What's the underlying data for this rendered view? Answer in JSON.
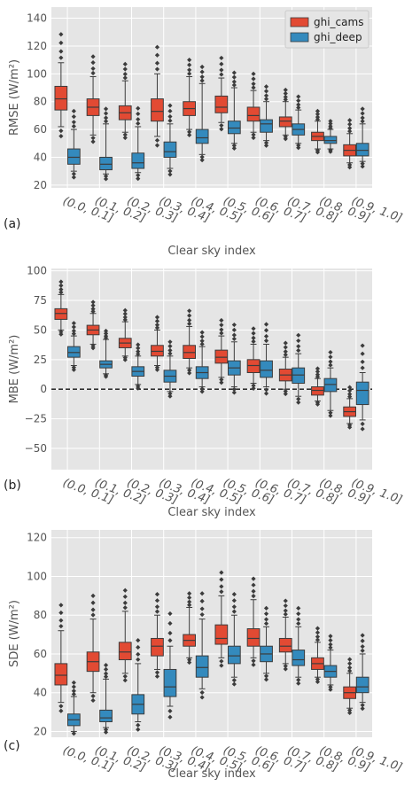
{
  "colors": {
    "ghi_cams": "#e24a33",
    "ghi_deep": "#348abd"
  },
  "legend": {
    "items": [
      "ghi_cams",
      "ghi_deep"
    ],
    "placement": "top-right"
  },
  "categories": [
    "(0.0, 0.1]",
    "(0.1, 0.2]",
    "(0.2, 0.3]",
    "(0.3, 0.4]",
    "(0.4, 0.5]",
    "(0.5, 0.6]",
    "(0.6, 0.7]",
    "(0.7, 0.8]",
    "(0.8, 0.9]",
    "(0.9, 1.0]"
  ],
  "chart_data": [
    {
      "type": "box",
      "panel_label": "(a)",
      "xlabel": "Clear sky index",
      "ylabel": "RMSE (W/m²)",
      "ylim": [
        18,
        148
      ],
      "yticks": [
        20,
        40,
        60,
        80,
        100,
        120,
        140
      ],
      "grid": true,
      "series": [
        {
          "name": "ghi_cams",
          "boxes": [
            {
              "whislo": 62,
              "q1": 74,
              "med": 82,
              "q3": 91,
              "whishi": 108
            },
            {
              "whislo": 56,
              "q1": 70,
              "med": 76,
              "q3": 82,
              "whishi": 98
            },
            {
              "whislo": 58,
              "q1": 67,
              "med": 72,
              "q3": 77,
              "whishi": 95
            },
            {
              "whislo": 55,
              "q1": 66,
              "med": 73,
              "q3": 82,
              "whishi": 100
            },
            {
              "whislo": 60,
              "q1": 70,
              "med": 75,
              "q3": 80,
              "whishi": 98
            },
            {
              "whislo": 65,
              "q1": 72,
              "med": 76,
              "q3": 84,
              "whishi": 97
            },
            {
              "whislo": 58,
              "q1": 66,
              "med": 70,
              "q3": 76,
              "whishi": 88
            },
            {
              "whislo": 56,
              "q1": 62,
              "med": 66,
              "q3": 69,
              "whishi": 80
            },
            {
              "whislo": 46,
              "q1": 52,
              "med": 55,
              "q3": 58,
              "whishi": 66
            },
            {
              "whislo": 36,
              "q1": 41,
              "med": 45,
              "q3": 49,
              "whishi": 57
            }
          ]
        },
        {
          "name": "ghi_deep",
          "boxes": [
            {
              "whislo": 30,
              "q1": 35,
              "med": 40,
              "q3": 46,
              "whishi": 60
            },
            {
              "whislo": 28,
              "q1": 31,
              "med": 35,
              "q3": 40,
              "whishi": 64
            },
            {
              "whislo": 29,
              "q1": 32,
              "med": 36,
              "q3": 43,
              "whishi": 62
            },
            {
              "whislo": 32,
              "q1": 40,
              "med": 44,
              "q3": 51,
              "whishi": 64
            },
            {
              "whislo": 42,
              "q1": 50,
              "med": 54,
              "q3": 60,
              "whishi": 93
            },
            {
              "whislo": 50,
              "q1": 57,
              "med": 61,
              "q3": 66,
              "whishi": 90
            },
            {
              "whislo": 52,
              "q1": 58,
              "med": 64,
              "q3": 67,
              "whishi": 80
            },
            {
              "whislo": 50,
              "q1": 56,
              "med": 60,
              "q3": 64,
              "whishi": 74
            },
            {
              "whislo": 46,
              "q1": 50,
              "med": 52,
              "q3": 55,
              "whishi": 60
            },
            {
              "whislo": 37,
              "q1": 41,
              "med": 45,
              "q3": 50,
              "whishi": 64
            }
          ]
        }
      ]
    },
    {
      "type": "box",
      "panel_label": "(b)",
      "xlabel": "Clear sky index",
      "ylabel": "MBE (W/m²)",
      "ylim": [
        -68,
        102
      ],
      "yticks": [
        -50,
        -25,
        0,
        25,
        50,
        75,
        100
      ],
      "zero_line": true,
      "grid": true,
      "series": [
        {
          "name": "ghi_cams",
          "boxes": [
            {
              "whislo": 50,
              "q1": 59,
              "med": 64,
              "q3": 68,
              "whishi": 80
            },
            {
              "whislo": 38,
              "q1": 46,
              "med": 50,
              "q3": 54,
              "whishi": 64
            },
            {
              "whislo": 28,
              "q1": 35,
              "med": 39,
              "q3": 43,
              "whishi": 57
            },
            {
              "whislo": 20,
              "q1": 28,
              "med": 32,
              "q3": 37,
              "whishi": 50
            },
            {
              "whislo": 18,
              "q1": 26,
              "med": 31,
              "q3": 37,
              "whishi": 53
            },
            {
              "whislo": 10,
              "q1": 22,
              "med": 27,
              "q3": 33,
              "whishi": 45
            },
            {
              "whislo": 5,
              "q1": 14,
              "med": 20,
              "q3": 25,
              "whishi": 38
            },
            {
              "whislo": 0,
              "q1": 7,
              "med": 12,
              "q3": 17,
              "whishi": 27
            },
            {
              "whislo": -10,
              "q1": -5,
              "med": -1,
              "q3": 2,
              "whishi": 9
            },
            {
              "whislo": -29,
              "q1": -23,
              "med": -19,
              "q3": -15,
              "whishi": -8
            }
          ]
        },
        {
          "name": "ghi_deep",
          "boxes": [
            {
              "whislo": 20,
              "q1": 27,
              "med": 31,
              "q3": 36,
              "whishi": 45
            },
            {
              "whislo": 13,
              "q1": 18,
              "med": 21,
              "q3": 24,
              "whishi": 42
            },
            {
              "whislo": 4,
              "q1": 11,
              "med": 15,
              "q3": 19,
              "whishi": 28
            },
            {
              "whislo": -2,
              "q1": 6,
              "med": 11,
              "q3": 16,
              "whishi": 28
            },
            {
              "whislo": 2,
              "q1": 9,
              "med": 14,
              "q3": 19,
              "whishi": 36
            },
            {
              "whislo": 2,
              "q1": 12,
              "med": 18,
              "q3": 24,
              "whishi": 40
            },
            {
              "whislo": 2,
              "q1": 10,
              "med": 16,
              "q3": 24,
              "whishi": 38
            },
            {
              "whislo": -6,
              "q1": 5,
              "med": 12,
              "q3": 18,
              "whishi": 30
            },
            {
              "whislo": -18,
              "q1": -2,
              "med": 4,
              "q3": 9,
              "whishi": 18
            },
            {
              "whislo": -26,
              "q1": -13,
              "med": -1,
              "q3": 6,
              "whishi": 14
            }
          ]
        }
      ]
    },
    {
      "type": "box",
      "panel_label": "(c)",
      "xlabel": "Clear sky index",
      "ylabel": "SDE (W/m²)",
      "ylim": [
        17,
        124
      ],
      "yticks": [
        20,
        40,
        60,
        80,
        100,
        120
      ],
      "grid": true,
      "series": [
        {
          "name": "ghi_cams",
          "boxes": [
            {
              "whislo": 35,
              "q1": 44,
              "med": 49,
              "q3": 55,
              "whishi": 72
            },
            {
              "whislo": 40,
              "q1": 51,
              "med": 56,
              "q3": 61,
              "whishi": 78
            },
            {
              "whislo": 50,
              "q1": 57,
              "med": 61,
              "q3": 66,
              "whishi": 82
            },
            {
              "whislo": 52,
              "q1": 59,
              "med": 64,
              "q3": 68,
              "whishi": 80
            },
            {
              "whislo": 58,
              "q1": 64,
              "med": 67,
              "q3": 70,
              "whishi": 84
            },
            {
              "whislo": 58,
              "q1": 65,
              "med": 68,
              "q3": 75,
              "whishi": 90
            },
            {
              "whislo": 58,
              "q1": 64,
              "med": 68,
              "q3": 73,
              "whishi": 88
            },
            {
              "whislo": 55,
              "q1": 61,
              "med": 64,
              "q3": 68,
              "whishi": 79
            },
            {
              "whislo": 48,
              "q1": 52,
              "med": 55,
              "q3": 58,
              "whishi": 66
            },
            {
              "whislo": 32,
              "q1": 37,
              "med": 40,
              "q3": 43,
              "whishi": 50
            }
          ]
        },
        {
          "name": "ghi_deep",
          "boxes": [
            {
              "whislo": 20,
              "q1": 23,
              "med": 26,
              "q3": 29,
              "whishi": 38
            },
            {
              "whislo": 22,
              "q1": 25,
              "med": 27,
              "q3": 31,
              "whishi": 47
            },
            {
              "whislo": 25,
              "q1": 29,
              "med": 34,
              "q3": 39,
              "whishi": 55
            },
            {
              "whislo": 33,
              "q1": 38,
              "med": 43,
              "q3": 52,
              "whishi": 64
            },
            {
              "whislo": 42,
              "q1": 48,
              "med": 53,
              "q3": 59,
              "whishi": 78
            },
            {
              "whislo": 48,
              "q1": 55,
              "med": 59,
              "q3": 64,
              "whishi": 80
            },
            {
              "whislo": 50,
              "q1": 56,
              "med": 60,
              "q3": 64,
              "whishi": 74
            },
            {
              "whislo": 48,
              "q1": 54,
              "med": 57,
              "q3": 62,
              "whishi": 74
            },
            {
              "whislo": 44,
              "q1": 48,
              "med": 51,
              "q3": 54,
              "whishi": 62
            },
            {
              "whislo": 35,
              "q1": 40,
              "med": 43,
              "q3": 48,
              "whishi": 60
            }
          ]
        }
      ]
    }
  ]
}
